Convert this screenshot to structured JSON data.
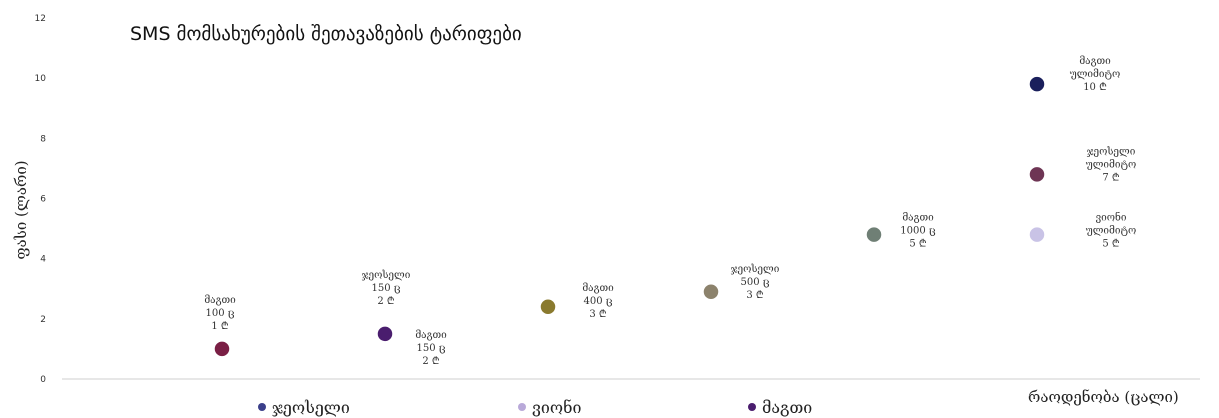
{
  "chart_data": {
    "type": "scatter",
    "title": "SMS მომსახურების შეთავაზების ტარიფები",
    "xlabel": "რაოდენობა (ცალი)",
    "ylabel": "ფასი (ლარი)",
    "ylim": [
      0,
      12
    ],
    "yticks": [
      "0",
      "2",
      "4",
      "6",
      "8",
      "10",
      "12"
    ],
    "grid": false,
    "legend_position": "bottom",
    "legend": [
      {
        "name": "ჯეოსელი",
        "color": "#3b3f8a"
      },
      {
        "name": "ვიონი",
        "color": "#b9a9d9"
      },
      {
        "name": "მაგთი",
        "color": "#4a1d6e"
      }
    ],
    "points": [
      {
        "x": 1,
        "y": 1,
        "color": "#7a1f45",
        "label": [
          "მაგთი",
          "100 ც",
          "1 ₾"
        ]
      },
      {
        "x": 2,
        "y": 1.5,
        "color": "#4a1d6e",
        "label": [
          "ჯეოსელი",
          "150 ც",
          "2 ₾"
        ],
        "label2": [
          "მაგთი",
          "150 ც",
          "2 ₾"
        ]
      },
      {
        "x": 3,
        "y": 2.4,
        "color": "#8a7a2e",
        "label": [
          "მაგთი",
          "400 ც",
          "3 ₾"
        ]
      },
      {
        "x": 4,
        "y": 2.9,
        "color": "#8c826c",
        "label": [
          "ჯეოსელი",
          "500 ც",
          "3 ₾"
        ]
      },
      {
        "x": 5,
        "y": 4.8,
        "color": "#6f7f75",
        "label": [
          "მაგთი",
          "1000 ც",
          "5 ₾"
        ]
      },
      {
        "x": 6,
        "y": 4.8,
        "color": "#c9c3e6",
        "label": [
          "ვიონი",
          "ულიმიტო",
          "5 ₾"
        ]
      },
      {
        "x": 6,
        "y": 6.8,
        "color": "#6e3554",
        "label": [
          "ჯეოსელი",
          "ულიმიტო",
          "7 ₾"
        ]
      },
      {
        "x": 6,
        "y": 9.8,
        "color": "#1a1f5c",
        "label": [
          "მაგთი",
          "ულიმიტო",
          "10 ₾"
        ]
      }
    ]
  }
}
